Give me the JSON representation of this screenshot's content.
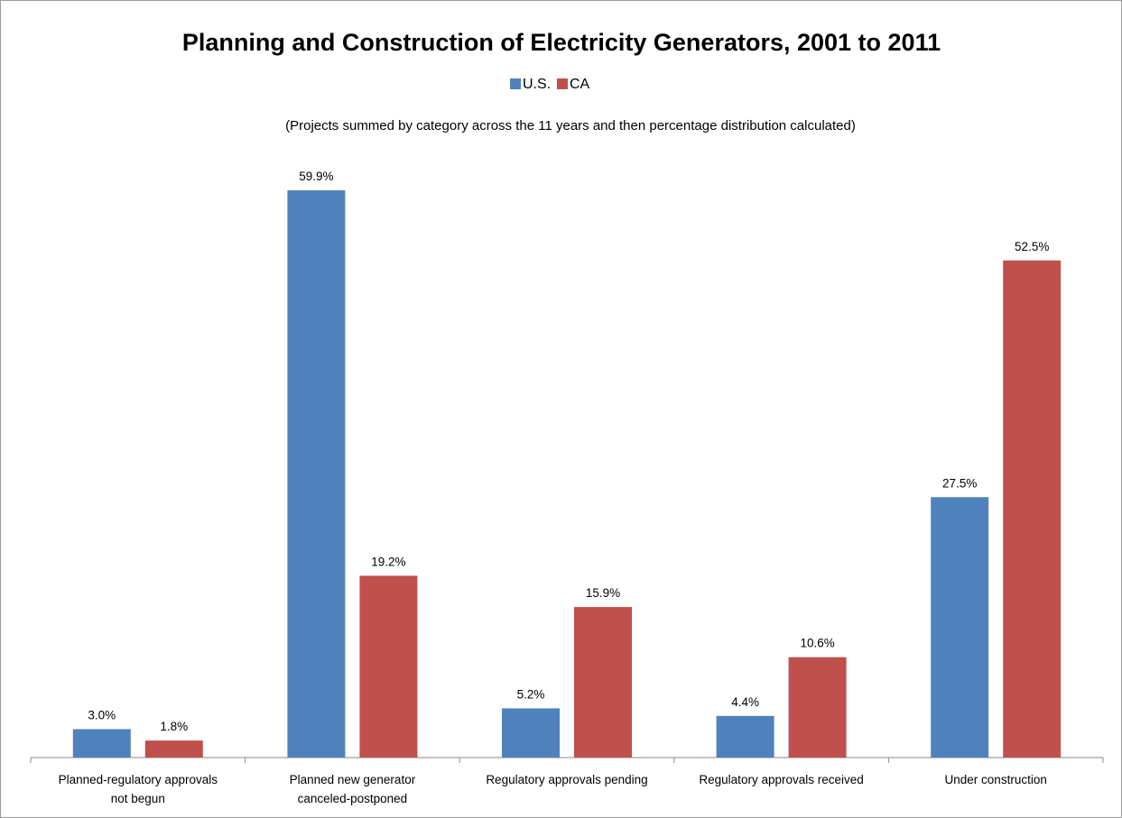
{
  "chart_data": {
    "type": "bar",
    "title": "Planning and Construction of Electricity Generators, 2001 to 2011",
    "subtitle": "(Projects summed by category across the 11 years and then percentage distribution calculated)",
    "legend_position": "top",
    "grid": false,
    "ylim": [
      0,
      64
    ],
    "categories": [
      [
        "Planned-regulatory approvals",
        "not begun"
      ],
      [
        "Planned new generator",
        "canceled-postponed"
      ],
      [
        "Regulatory approvals pending"
      ],
      [
        "Regulatory approvals received"
      ],
      [
        "Under construction"
      ]
    ],
    "series": [
      {
        "name": "U.S.",
        "color": "#4F81BD",
        "values": [
          3.0,
          59.9,
          5.2,
          4.4,
          27.5
        ],
        "labels": [
          "3.0%",
          "59.9%",
          "5.2%",
          "4.4%",
          "27.5%"
        ]
      },
      {
        "name": "CA",
        "color": "#C0504D",
        "values": [
          1.8,
          19.2,
          15.9,
          10.6,
          52.5
        ],
        "labels": [
          "1.8%",
          "19.2%",
          "15.9%",
          "10.6%",
          "52.5%"
        ]
      }
    ]
  }
}
